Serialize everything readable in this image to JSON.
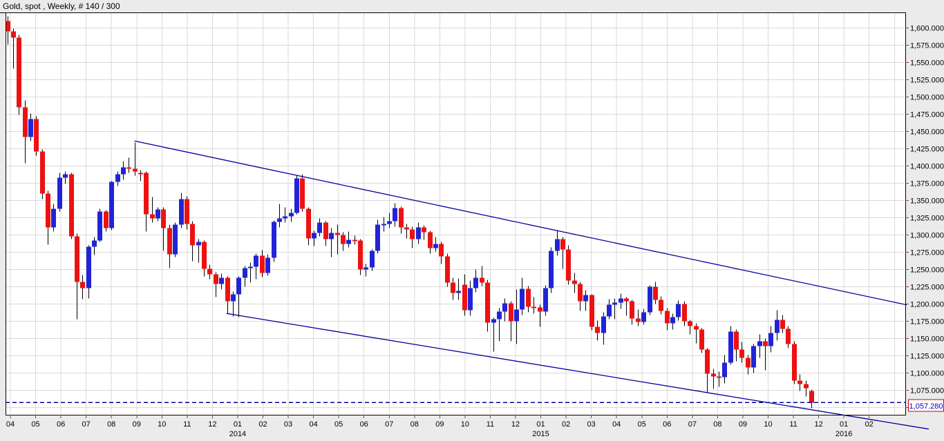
{
  "title": "Gold, spot , Weekly, # 140 / 300",
  "chart_data": {
    "type": "candlestick",
    "instrument": "Gold, spot",
    "timeframe": "Weekly",
    "bar_counter": "# 140 / 300",
    "legend_position": "none",
    "grid": true,
    "colors": {
      "up": "#2024d6",
      "down": "#ee1111",
      "wick": "#000000",
      "grid": "#d9d9d9",
      "trendline": "#000099",
      "axis_tick": "#993333",
      "axis_text": "#000000",
      "label_box_border": "#cc0000",
      "label_box_text": "#0000cc",
      "plot_bg": "#ffffff",
      "outer_bg": "#ebebeb",
      "border": "#000000"
    },
    "y_axis": {
      "min": 1050,
      "max": 1600,
      "step": 25,
      "labels": [
        "1,600.000",
        "1,575.000",
        "1,550.000",
        "1,525.000",
        "1,500.000",
        "1,475.000",
        "1,450.000",
        "1,425.000",
        "1,400.000",
        "1,375.000",
        "1,350.000",
        "1,325.000",
        "1,300.000",
        "1,275.000",
        "1,250.000",
        "1,225.000",
        "1,200.000",
        "1,175.000",
        "1,150.000",
        "1,125.000",
        "1,100.000",
        "1,075.000",
        "1,050.000"
      ]
    },
    "x_axis": {
      "months": [
        {
          "label": "04"
        },
        {
          "label": "05"
        },
        {
          "label": "06"
        },
        {
          "label": "07"
        },
        {
          "label": "08"
        },
        {
          "label": "09"
        },
        {
          "label": "10"
        },
        {
          "label": "11"
        },
        {
          "label": "12"
        },
        {
          "label": "01",
          "year": "2014"
        },
        {
          "label": "02"
        },
        {
          "label": "03"
        },
        {
          "label": "04"
        },
        {
          "label": "05"
        },
        {
          "label": "06"
        },
        {
          "label": "07"
        },
        {
          "label": "08"
        },
        {
          "label": "09"
        },
        {
          "label": "10"
        },
        {
          "label": "11"
        },
        {
          "label": "12"
        },
        {
          "label": "01",
          "year": "2015"
        },
        {
          "label": "02"
        },
        {
          "label": "03"
        },
        {
          "label": "04"
        },
        {
          "label": "05"
        },
        {
          "label": "06"
        },
        {
          "label": "07"
        },
        {
          "label": "08"
        },
        {
          "label": "09"
        },
        {
          "label": "10"
        },
        {
          "label": "11"
        },
        {
          "label": "12"
        },
        {
          "label": "01",
          "year": "2016"
        },
        {
          "label": "02"
        }
      ]
    },
    "last_price_line": {
      "price": 1057.28,
      "label": "1,057.280"
    },
    "trendlines": [
      {
        "name": "upper-channel-trendline",
        "from": {
          "week": 22.0,
          "price": 1436.5
        },
        "to": {
          "week": 155.5,
          "price": 1199.0
        }
      },
      {
        "name": "lower-channel-trendline",
        "from": {
          "week": 37.9,
          "price": 1186.5
        },
        "to": {
          "week": 159.3,
          "price": 1019.0
        }
      }
    ],
    "candles": [
      [
        1610,
        1617,
        1576,
        1595
      ],
      [
        1595,
        1599,
        1541,
        1586
      ],
      [
        1586,
        1590,
        1474,
        1485
      ],
      [
        1485,
        1495,
        1404,
        1442
      ],
      [
        1442,
        1476,
        1436,
        1468
      ],
      [
        1468,
        1472,
        1415,
        1421
      ],
      [
        1421,
        1424,
        1352,
        1360
      ],
      [
        1360,
        1364,
        1286,
        1311
      ],
      [
        1311,
        1345,
        1305,
        1338
      ],
      [
        1338,
        1390,
        1334,
        1383
      ],
      [
        1383,
        1392,
        1374,
        1388
      ],
      [
        1388,
        1390,
        1294,
        1298
      ],
      [
        1298,
        1302,
        1178,
        1232
      ],
      [
        1232,
        1242,
        1207,
        1223
      ],
      [
        1223,
        1285,
        1208,
        1283
      ],
      [
        1283,
        1297,
        1271,
        1292
      ],
      [
        1292,
        1338,
        1290,
        1334
      ],
      [
        1334,
        1336,
        1305,
        1310
      ],
      [
        1310,
        1378,
        1307,
        1377
      ],
      [
        1377,
        1392,
        1371,
        1388
      ],
      [
        1388,
        1407,
        1380,
        1398
      ],
      [
        1398,
        1412,
        1390,
        1396
      ],
      [
        1396,
        1434,
        1386,
        1392
      ],
      [
        1390,
        1394,
        1378,
        1389
      ],
      [
        1390,
        1392,
        1305,
        1330
      ],
      [
        1330,
        1355,
        1318,
        1324
      ],
      [
        1324,
        1340,
        1320,
        1337
      ],
      [
        1337,
        1340,
        1277,
        1310
      ],
      [
        1310,
        1315,
        1252,
        1272
      ],
      [
        1272,
        1318,
        1268,
        1315
      ],
      [
        1315,
        1361,
        1310,
        1352
      ],
      [
        1352,
        1356,
        1308,
        1316
      ],
      [
        1316,
        1320,
        1262,
        1285
      ],
      [
        1285,
        1294,
        1260,
        1290
      ],
      [
        1290,
        1292,
        1240,
        1251
      ],
      [
        1251,
        1257,
        1236,
        1243
      ],
      [
        1243,
        1246,
        1210,
        1229
      ],
      [
        1229,
        1244,
        1221,
        1238
      ],
      [
        1238,
        1240,
        1186,
        1204
      ],
      [
        1204,
        1218,
        1182,
        1214
      ],
      [
        1214,
        1240,
        1181,
        1238
      ],
      [
        1238,
        1255,
        1225,
        1252
      ],
      [
        1252,
        1260,
        1231,
        1254
      ],
      [
        1254,
        1273,
        1236,
        1270
      ],
      [
        1270,
        1278,
        1239,
        1245
      ],
      [
        1245,
        1272,
        1241,
        1267
      ],
      [
        1267,
        1321,
        1261,
        1319
      ],
      [
        1319,
        1345,
        1311,
        1324
      ],
      [
        1324,
        1340,
        1318,
        1327
      ],
      [
        1327,
        1338,
        1319,
        1332
      ],
      [
        1332,
        1386,
        1330,
        1382
      ],
      [
        1382,
        1388,
        1334,
        1338
      ],
      [
        1338,
        1340,
        1285,
        1295
      ],
      [
        1295,
        1306,
        1284,
        1303
      ],
      [
        1303,
        1324,
        1298,
        1318
      ],
      [
        1318,
        1320,
        1284,
        1294
      ],
      [
        1294,
        1310,
        1268,
        1303
      ],
      [
        1303,
        1315,
        1272,
        1300
      ],
      [
        1300,
        1304,
        1277,
        1287
      ],
      [
        1287,
        1305,
        1282,
        1293
      ],
      [
        1293,
        1299,
        1286,
        1292
      ],
      [
        1292,
        1294,
        1242,
        1250
      ],
      [
        1250,
        1258,
        1240,
        1253
      ],
      [
        1253,
        1279,
        1248,
        1277
      ],
      [
        1277,
        1322,
        1273,
        1315
      ],
      [
        1315,
        1326,
        1305,
        1316
      ],
      [
        1316,
        1332,
        1310,
        1320
      ],
      [
        1320,
        1346,
        1312,
        1339
      ],
      [
        1339,
        1341,
        1302,
        1311
      ],
      [
        1311,
        1316,
        1295,
        1308
      ],
      [
        1308,
        1312,
        1281,
        1294
      ],
      [
        1294,
        1318,
        1287,
        1311
      ],
      [
        1311,
        1314,
        1293,
        1304
      ],
      [
        1304,
        1306,
        1273,
        1281
      ],
      [
        1281,
        1297,
        1276,
        1287
      ],
      [
        1287,
        1290,
        1258,
        1269
      ],
      [
        1269,
        1273,
        1225,
        1231
      ],
      [
        1231,
        1238,
        1206,
        1216
      ],
      [
        1216,
        1237,
        1206,
        1219
      ],
      [
        1228,
        1243,
        1183,
        1191
      ],
      [
        1191,
        1234,
        1183,
        1223
      ],
      [
        1223,
        1250,
        1217,
        1238
      ],
      [
        1238,
        1255,
        1226,
        1231
      ],
      [
        1231,
        1235,
        1160,
        1173
      ],
      [
        1173,
        1180,
        1131,
        1178
      ],
      [
        1178,
        1194,
        1146,
        1189
      ],
      [
        1189,
        1208,
        1175,
        1201
      ],
      [
        1201,
        1204,
        1146,
        1175
      ],
      [
        1175,
        1221,
        1142,
        1192
      ],
      [
        1192,
        1238,
        1184,
        1222
      ],
      [
        1222,
        1226,
        1188,
        1196
      ],
      [
        1196,
        1210,
        1186,
        1195
      ],
      [
        1195,
        1199,
        1167,
        1189
      ],
      [
        1189,
        1227,
        1183,
        1223
      ],
      [
        1223,
        1282,
        1216,
        1277
      ],
      [
        1277,
        1307,
        1270,
        1294
      ],
      [
        1294,
        1297,
        1251,
        1279
      ],
      [
        1279,
        1285,
        1228,
        1234
      ],
      [
        1234,
        1245,
        1216,
        1229
      ],
      [
        1229,
        1232,
        1190,
        1204
      ],
      [
        1204,
        1220,
        1190,
        1213
      ],
      [
        1213,
        1214,
        1162,
        1167
      ],
      [
        1167,
        1176,
        1147,
        1158
      ],
      [
        1158,
        1188,
        1141,
        1182
      ],
      [
        1182,
        1207,
        1178,
        1199
      ],
      [
        1199,
        1208,
        1178,
        1202
      ],
      [
        1202,
        1215,
        1193,
        1208
      ],
      [
        1208,
        1210,
        1183,
        1204
      ],
      [
        1204,
        1206,
        1170,
        1179
      ],
      [
        1179,
        1192,
        1168,
        1174
      ],
      [
        1174,
        1193,
        1170,
        1188
      ],
      [
        1188,
        1227,
        1184,
        1225
      ],
      [
        1225,
        1232,
        1200,
        1206
      ],
      [
        1206,
        1211,
        1185,
        1190
      ],
      [
        1190,
        1194,
        1162,
        1172
      ],
      [
        1172,
        1186,
        1163,
        1181
      ],
      [
        1181,
        1205,
        1176,
        1200
      ],
      [
        1200,
        1204,
        1168,
        1175
      ],
      [
        1175,
        1177,
        1156,
        1168
      ],
      [
        1168,
        1172,
        1143,
        1163
      ],
      [
        1163,
        1165,
        1129,
        1134
      ],
      [
        1134,
        1136,
        1072,
        1099
      ],
      [
        1099,
        1106,
        1077,
        1095
      ],
      [
        1095,
        1102,
        1080,
        1094
      ],
      [
        1094,
        1126,
        1085,
        1115
      ],
      [
        1115,
        1168,
        1112,
        1160
      ],
      [
        1160,
        1163,
        1117,
        1134
      ],
      [
        1134,
        1145,
        1115,
        1122
      ],
      [
        1122,
        1126,
        1098,
        1108
      ],
      [
        1108,
        1142,
        1100,
        1139
      ],
      [
        1139,
        1156,
        1122,
        1146
      ],
      [
        1146,
        1150,
        1104,
        1139
      ],
      [
        1139,
        1168,
        1130,
        1158
      ],
      [
        1158,
        1191,
        1147,
        1177
      ],
      [
        1177,
        1184,
        1158,
        1164
      ],
      [
        1164,
        1168,
        1136,
        1142
      ],
      [
        1142,
        1146,
        1084,
        1089
      ],
      [
        1089,
        1098,
        1074,
        1084
      ],
      [
        1084,
        1089,
        1066,
        1078
      ],
      [
        1074,
        1076,
        1049,
        1057.28
      ]
    ]
  }
}
